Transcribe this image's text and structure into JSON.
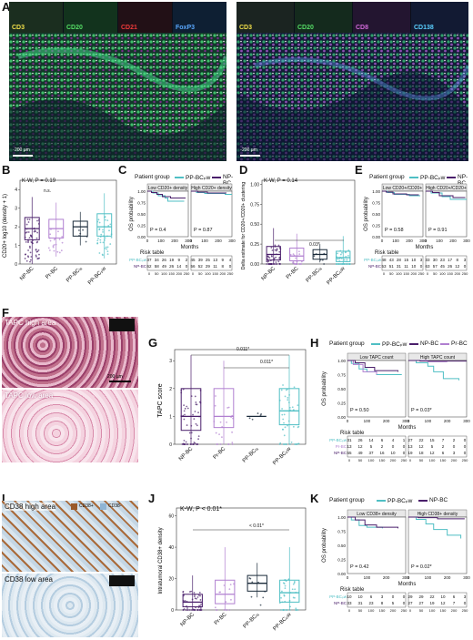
{
  "panels": {
    "A": {
      "letter": "A",
      "left_tabs": [
        "CD3",
        "CD20",
        "CD21",
        "FoxP3"
      ],
      "right_tabs": [
        "CD3",
        "CD20",
        "CD8",
        "CD138"
      ],
      "scale": "200 µm",
      "scale_right": "200 µm"
    },
    "B": {
      "letter": "B",
      "stat": "K-W, P = 0.19",
      "sig": "n.s.",
      "ylabel": "CD20+ log10 (density + 1)",
      "yticks": [
        "0",
        "1",
        "2",
        "3",
        "4"
      ],
      "groups": [
        "NP-BC",
        "Pr-BC",
        "PP-BCₗₐ",
        "PP-BCₚw"
      ]
    },
    "C": {
      "letter": "C",
      "legend_title": "Patient group",
      "legend": [
        "PP-BCₚw",
        "NP-BC"
      ],
      "strip": [
        "Low CD20+ density",
        "High CD20+ density"
      ],
      "ylabel": "OS probability",
      "xlabel": "Months",
      "pvals": [
        "P = 0.4",
        "P = 0.87"
      ],
      "yticks": [
        "0.00",
        "0.25",
        "0.50",
        "0.75",
        "1.00"
      ],
      "xticks": [
        "0",
        "100",
        "200",
        "300"
      ],
      "risk_title": "Risk table",
      "risk_names": [
        "PP-BCₚw",
        "NP-BC"
      ],
      "risk_rows": [
        [
          "37",
          "34",
          "26",
          "19",
          "9",
          "2"
        ],
        [
          "62",
          "58",
          "49",
          "26",
          "14",
          "0"
        ]
      ],
      "risk_rows_right": [
        [
          "45",
          "39",
          "25",
          "13",
          "9",
          "4"
        ],
        [
          "56",
          "52",
          "29",
          "11",
          "8",
          "0"
        ]
      ],
      "risk_ticks": [
        "0",
        "50",
        "100",
        "150",
        "200",
        "250"
      ]
    },
    "D": {
      "letter": "D",
      "stat": "K-W, P = 0.14",
      "sig": "0.03*",
      "ylabel": "Delta estimate for CD20+/CD20+ clustering",
      "yticks": [
        "0.00",
        "0.25",
        "0.50",
        "0.75",
        "1.00"
      ],
      "groups": [
        "NP-BC",
        "Pr-BC",
        "PP-BCₗₐ",
        "PP-BCₚw"
      ]
    },
    "E": {
      "letter": "E",
      "legend_title": "Patient group",
      "legend": [
        "PP-BCₚw",
        "NP-BC"
      ],
      "strip": [
        "Low CD20+/CD20+",
        "High CD20+/CD20+"
      ],
      "ylabel": "OS probability",
      "xlabel": "Months",
      "pvals": [
        "P = 0.58",
        "P = 0.91"
      ],
      "yticks": [
        "0.00",
        "0.25",
        "0.50",
        "0.75",
        "1.00"
      ],
      "xticks": [
        "0",
        "100",
        "200",
        "300"
      ],
      "risk_title": "Risk table",
      "risk_names": [
        "PP-BCₚw",
        "NP-BC"
      ],
      "risk_rows": [
        [
          "48",
          "43",
          "28",
          "15",
          "10",
          "3"
        ],
        [
          "53",
          "51",
          "31",
          "11",
          "10",
          "0"
        ]
      ],
      "risk_rows_right": [
        [
          "33",
          "30",
          "23",
          "17",
          "8",
          "3"
        ],
        [
          "63",
          "57",
          "45",
          "26",
          "12",
          "0"
        ]
      ],
      "risk_ticks": [
        "0",
        "50",
        "100",
        "150",
        "200",
        "250"
      ]
    },
    "F": {
      "letter": "F",
      "high": "TAPC high area",
      "low": "TAPC low area",
      "scale": "200 µm"
    },
    "G": {
      "letter": "G",
      "sig1": "0.011*",
      "sig2": "0.011*",
      "ylabel": "TAPC score",
      "yticks": [
        "0",
        "1",
        "2",
        "3"
      ],
      "groups": [
        "NP-BC",
        "Pr-BC",
        "PP-BCₗₐ",
        "PP-BCₚw"
      ]
    },
    "H": {
      "letter": "H",
      "legend_title": "Patient group",
      "legend": [
        "PP-BCₚw",
        "NP-BC",
        "Pr-BC"
      ],
      "strip": [
        "Low TAPC count",
        "High TAPC count"
      ],
      "ylabel": "OS probability",
      "xlabel": "Months",
      "pvals": [
        "P = 0.50",
        "P = 0.03*"
      ],
      "yticks": [
        "0.00",
        "0.25",
        "0.50",
        "0.75",
        "1.00"
      ],
      "xticks": [
        "0",
        "100",
        "200",
        "300"
      ],
      "risk_title": "Risk table",
      "risk_names": [
        "PP-BCₚw",
        "Pr-BC",
        "NP-BC"
      ],
      "risk_rows": [
        [
          "31",
          "26",
          "14",
          "6",
          "4",
          "1"
        ],
        [
          "13",
          "12",
          "5",
          "2",
          "0",
          "0"
        ],
        [
          "55",
          "49",
          "37",
          "16",
          "10",
          "0"
        ]
      ],
      "risk_rows_right": [
        [
          "27",
          "22",
          "15",
          "7",
          "2",
          "0"
        ],
        [
          "13",
          "12",
          "5",
          "2",
          "0",
          "0"
        ],
        [
          "19",
          "18",
          "12",
          "6",
          "3",
          "0"
        ]
      ],
      "risk_ticks": [
        "0",
        "50",
        "100",
        "150",
        "200",
        "250"
      ]
    },
    "I": {
      "letter": "I",
      "high": "CD38 high area",
      "low": "CD38 low area",
      "legend": [
        "CD38+",
        "CD38-"
      ]
    },
    "J": {
      "letter": "J",
      "stat": "K-W, P < 0.01*",
      "sig": "< 0.01*",
      "ylabel": "Intratumoral CD38+ density",
      "yticks": [
        "0",
        "20",
        "40",
        "60"
      ],
      "groups": [
        "NP-BC",
        "Pr-BC",
        "PP-BCₗₐ",
        "PP-BCₚw"
      ]
    },
    "K": {
      "letter": "K",
      "legend_title": "Patient group",
      "legend": [
        "PP-BCₚw",
        "NP-BC"
      ],
      "strip": [
        "Low CD38+ density",
        "High CD38+ density"
      ],
      "ylabel": "OS probability",
      "xlabel": "Months",
      "pvals": [
        "P = 0.42",
        "P = 0.02*"
      ],
      "yticks": [
        "0.00",
        "0.25",
        "0.50",
        "0.75",
        "1.00"
      ],
      "xticks": [
        "0",
        "100",
        "200",
        "300"
      ],
      "risk_title": "Risk table",
      "risk_names": [
        "PP-BCₚw",
        "NP-BC"
      ],
      "risk_rows": [
        [
          "10",
          "10",
          "6",
          "3",
          "0",
          "0"
        ],
        [
          "33",
          "31",
          "23",
          "8",
          "5",
          "0"
        ]
      ],
      "risk_rows_right": [
        [
          "29",
          "29",
          "22",
          "10",
          "6",
          "3"
        ],
        [
          "27",
          "27",
          "19",
          "12",
          "7",
          "0"
        ]
      ],
      "risk_ticks": [
        "0",
        "50",
        "100",
        "150",
        "200",
        "250"
      ]
    }
  },
  "colors": {
    "ppbcpw": "#4fbfc4",
    "npbc": "#4a1f6b",
    "prbc": "#b07fd0",
    "ppbcla": "#1a2a3a",
    "gold": "#d9b234"
  }
}
